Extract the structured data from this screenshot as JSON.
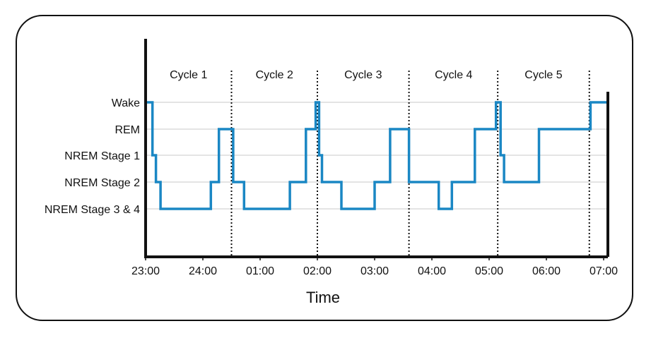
{
  "chart_data": {
    "type": "line",
    "step": true,
    "title": "",
    "xlabel": "Time",
    "ylabel": "",
    "x_unit": "hours since 23:00 (clock time on axis)",
    "xlim": [
      0,
      8.12
    ],
    "x_ticks": [
      0,
      1,
      2,
      3,
      4,
      5,
      6,
      7,
      8
    ],
    "x_tick_labels": [
      "23:00",
      "24:00",
      "01:00",
      "02:00",
      "03:00",
      "04:00",
      "05:00",
      "06:00",
      "07:00"
    ],
    "categories": [
      "NREM Stage 3 & 4",
      "NREM Stage 2",
      "NREM Stage 1",
      "REM",
      "Wake"
    ],
    "grid": true,
    "cycle_boundaries": [
      1.5,
      3.0,
      4.6,
      6.15,
      7.75
    ],
    "cycles": [
      {
        "label": "Cycle 1",
        "x": 0.75
      },
      {
        "label": "Cycle 2",
        "x": 2.25
      },
      {
        "label": "Cycle 3",
        "x": 3.8
      },
      {
        "label": "Cycle 4",
        "x": 5.38
      },
      {
        "label": "Cycle 5",
        "x": 6.95
      }
    ],
    "series": [
      {
        "color": "#1a87c4",
        "points": [
          [
            0,
            4
          ],
          [
            0.12,
            4
          ],
          [
            0.12,
            2
          ],
          [
            0.18,
            2
          ],
          [
            0.18,
            1
          ],
          [
            0.26,
            1
          ],
          [
            0.26,
            0
          ],
          [
            1.14,
            0
          ],
          [
            1.14,
            1
          ],
          [
            1.28,
            1
          ],
          [
            1.28,
            3
          ],
          [
            1.53,
            3
          ],
          [
            1.53,
            1
          ],
          [
            1.72,
            1
          ],
          [
            1.72,
            0
          ],
          [
            2.52,
            0
          ],
          [
            2.52,
            1
          ],
          [
            2.8,
            1
          ],
          [
            2.8,
            3
          ],
          [
            2.97,
            3
          ],
          [
            2.97,
            4
          ],
          [
            3.03,
            4
          ],
          [
            3.03,
            2
          ],
          [
            3.08,
            2
          ],
          [
            3.08,
            1
          ],
          [
            3.42,
            1
          ],
          [
            3.42,
            0
          ],
          [
            4.0,
            0
          ],
          [
            4.0,
            1
          ],
          [
            4.27,
            1
          ],
          [
            4.27,
            3
          ],
          [
            4.6,
            3
          ],
          [
            4.6,
            1
          ],
          [
            5.12,
            1
          ],
          [
            5.12,
            0
          ],
          [
            5.35,
            0
          ],
          [
            5.35,
            1
          ],
          [
            5.75,
            1
          ],
          [
            5.75,
            3
          ],
          [
            6.12,
            3
          ],
          [
            6.12,
            4
          ],
          [
            6.2,
            4
          ],
          [
            6.2,
            2
          ],
          [
            6.26,
            2
          ],
          [
            6.26,
            1
          ],
          [
            6.87,
            1
          ],
          [
            6.87,
            3
          ],
          [
            7.77,
            3
          ],
          [
            7.77,
            4
          ],
          [
            8.05,
            4
          ]
        ]
      }
    ]
  }
}
